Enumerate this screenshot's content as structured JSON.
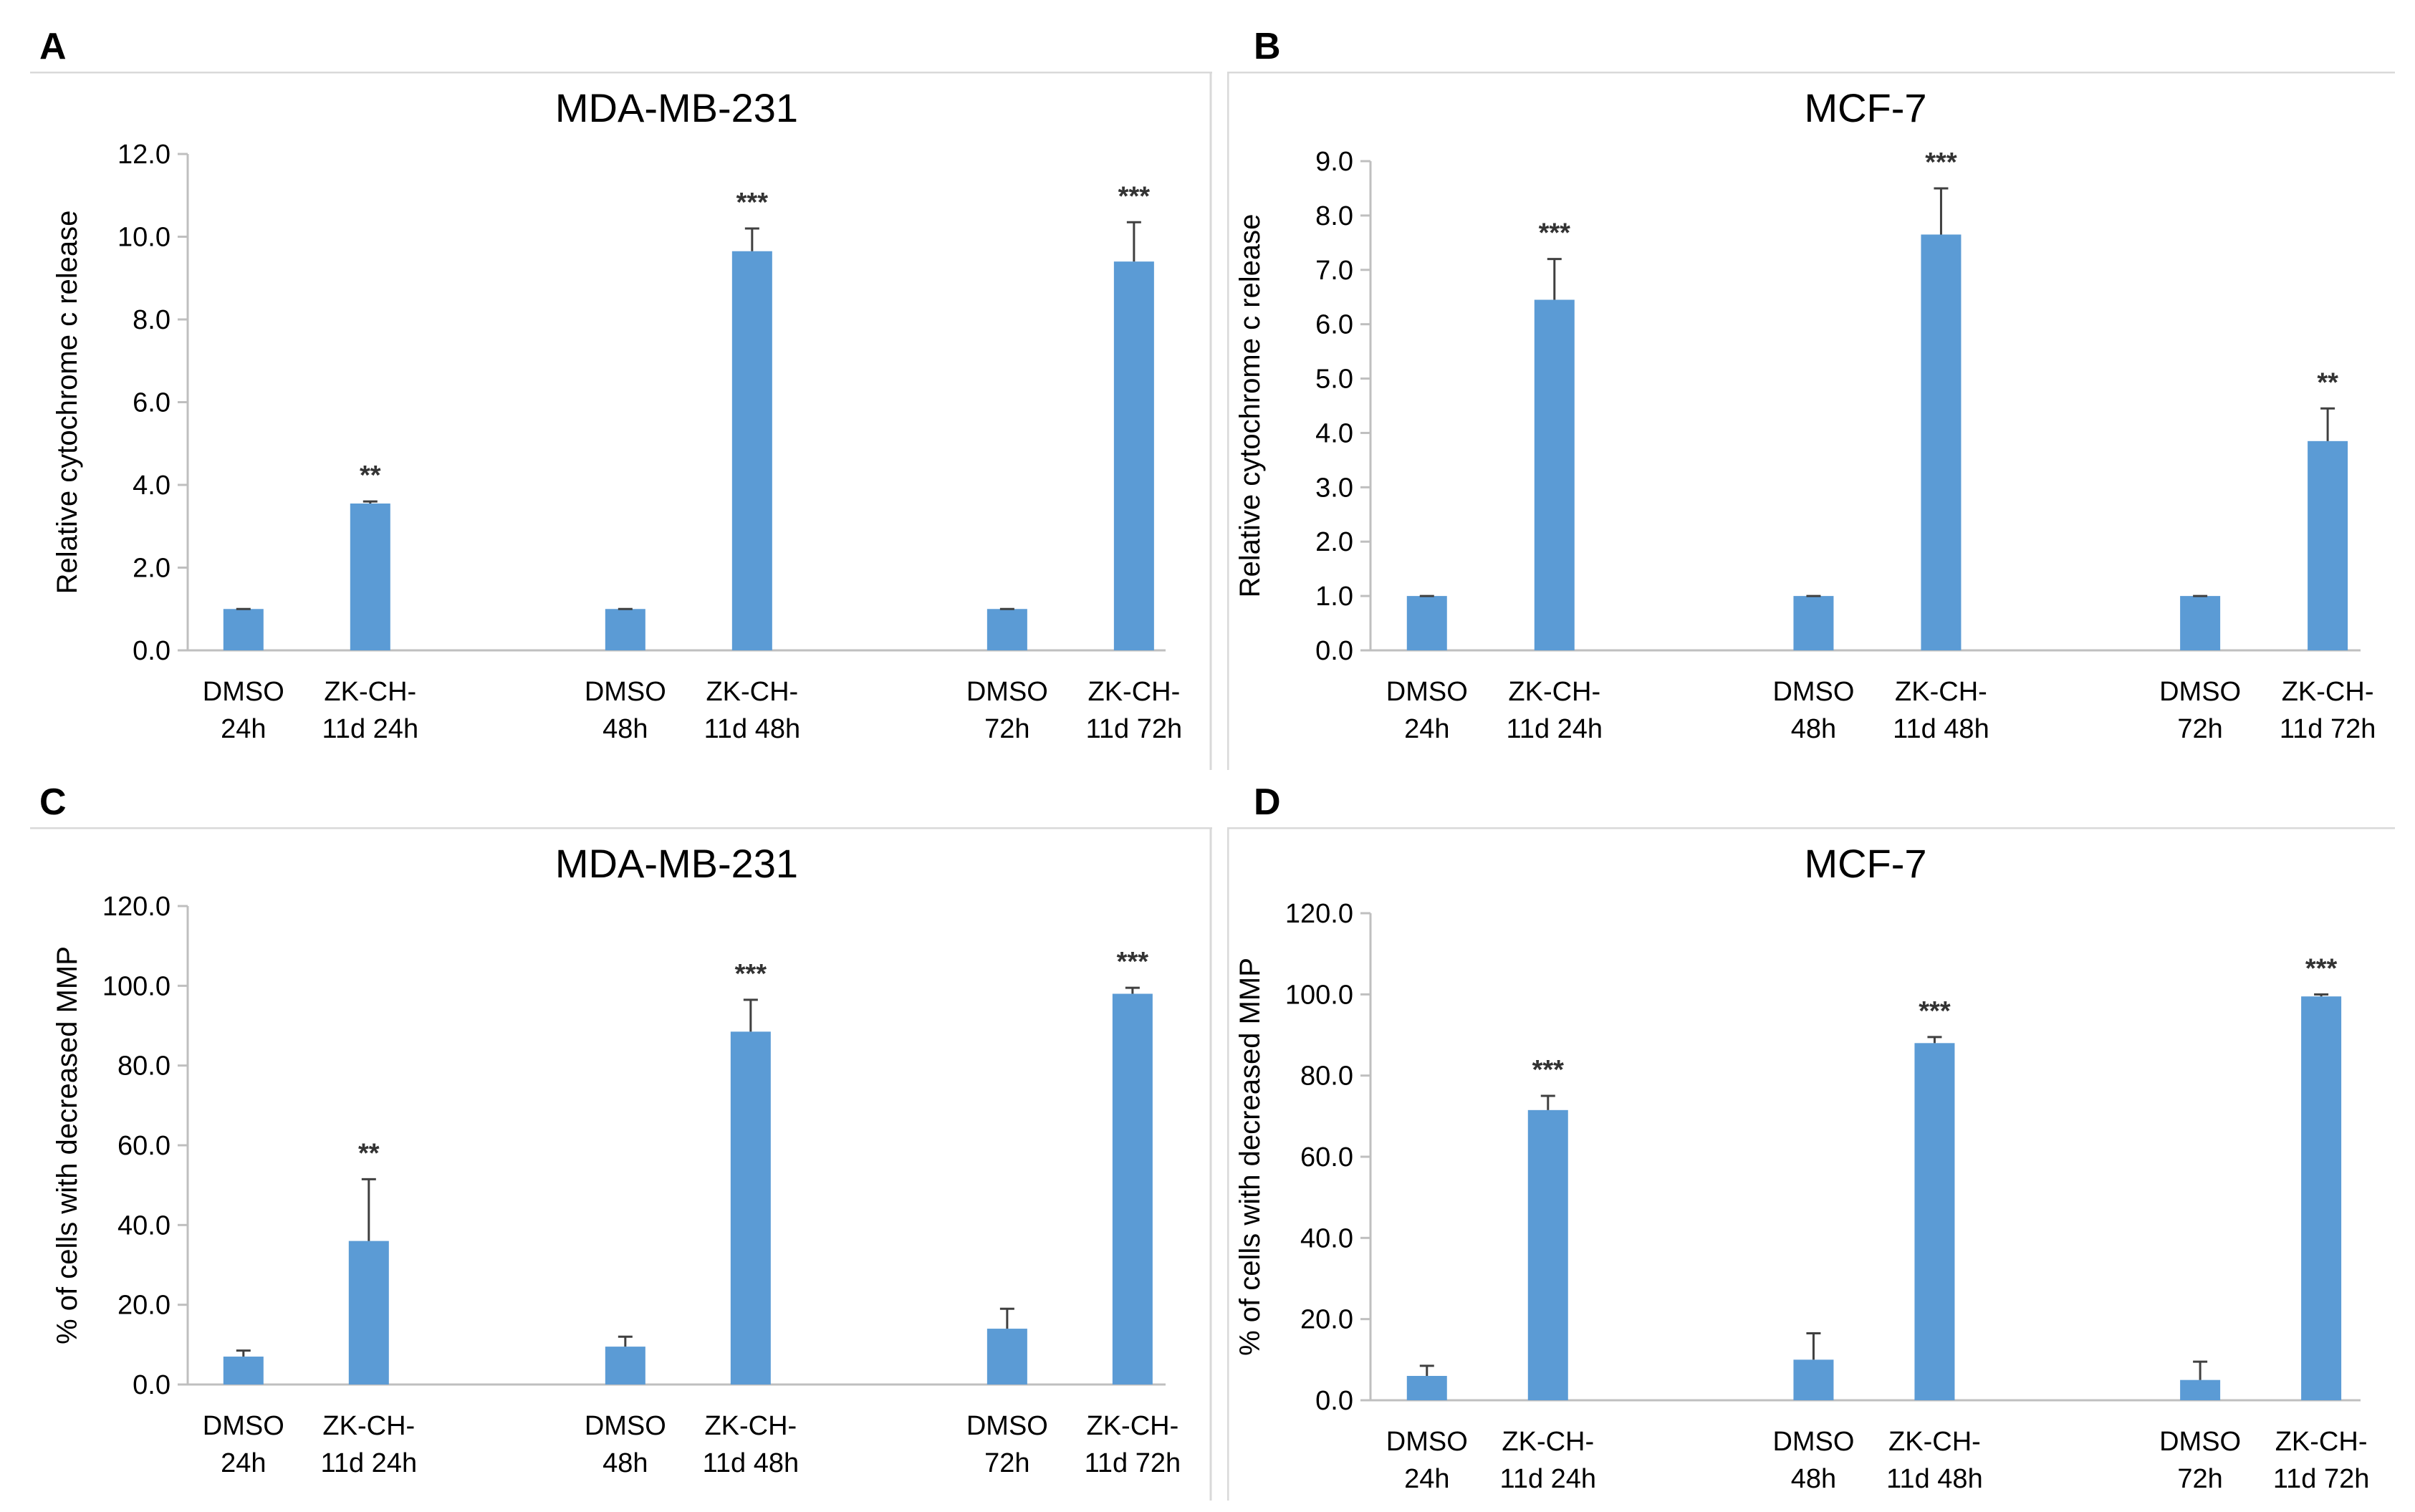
{
  "colors": {
    "bar": "#5b9bd5",
    "error": "#404040",
    "axis": "#bfbfbf",
    "frame": "#d9d9d9",
    "text": "#000000"
  },
  "panels": [
    {
      "letter": "A"
    },
    {
      "letter": "B"
    },
    {
      "letter": "C"
    },
    {
      "letter": "D"
    }
  ],
  "chart_data": [
    {
      "type": "bar",
      "title": "MDA-MB-231",
      "ylabel": "Relative cytochrome c release",
      "xlabel": "",
      "ylim": [
        0,
        12.0
      ],
      "ticks": [
        "0.0",
        "2.0",
        "4.0",
        "6.0",
        "8.0",
        "10.0",
        "12.0"
      ],
      "categories": [
        [
          "DMSO",
          "24h"
        ],
        [
          "ZK-CH-",
          "11d 24h"
        ],
        [
          "DMSO",
          "48h"
        ],
        [
          "ZK-CH-",
          "11d 48h"
        ],
        [
          "DMSO",
          "72h"
        ],
        [
          "ZK-CH-",
          "11d 72h"
        ]
      ],
      "values": [
        1.0,
        3.55,
        1.0,
        9.65,
        1.0,
        9.4
      ],
      "errors": [
        0.0,
        0.05,
        0.0,
        0.55,
        0.0,
        0.95
      ],
      "significance": [
        "",
        "**",
        "",
        "***",
        "",
        "***"
      ]
    },
    {
      "type": "bar",
      "title": "MCF-7",
      "ylabel": "Relative cytochrome c release",
      "xlabel": "",
      "ylim": [
        0,
        9.0
      ],
      "ticks": [
        "0.0",
        "1.0",
        "2.0",
        "3.0",
        "4.0",
        "5.0",
        "6.0",
        "7.0",
        "8.0",
        "9.0"
      ],
      "categories": [
        [
          "DMSO",
          "24h"
        ],
        [
          "ZK-CH-",
          "11d 24h"
        ],
        [
          "DMSO",
          "48h"
        ],
        [
          "ZK-CH-",
          "11d 48h"
        ],
        [
          "DMSO",
          "72h"
        ],
        [
          "ZK-CH-",
          "11d 72h"
        ]
      ],
      "values": [
        1.0,
        6.45,
        1.0,
        7.65,
        1.0,
        3.85
      ],
      "errors": [
        0.0,
        0.75,
        0.0,
        0.85,
        0.0,
        0.6
      ],
      "significance": [
        "",
        "***",
        "",
        "***",
        "",
        "**"
      ]
    },
    {
      "type": "bar",
      "title": "MDA-MB-231",
      "ylabel": "% of cells with decreased MMP",
      "xlabel": "",
      "ylim": [
        0,
        120.0
      ],
      "ticks": [
        "0.0",
        "20.0",
        "40.0",
        "60.0",
        "80.0",
        "100.0",
        "120.0"
      ],
      "categories": [
        [
          "DMSO",
          "24h"
        ],
        [
          "ZK-CH-",
          "11d 24h"
        ],
        [
          "DMSO",
          "48h"
        ],
        [
          "ZK-CH-",
          "11d 48h"
        ],
        [
          "DMSO",
          "72h"
        ],
        [
          "ZK-CH-",
          "11d 72h"
        ]
      ],
      "values": [
        7.0,
        36.0,
        9.5,
        88.5,
        14.0,
        98.0
      ],
      "errors": [
        1.5,
        15.5,
        2.5,
        8.0,
        5.0,
        1.5
      ],
      "significance": [
        "",
        "**",
        "",
        "***",
        "",
        "***"
      ]
    },
    {
      "type": "bar",
      "title": "MCF-7",
      "ylabel": "% of cells with decreased MMP",
      "xlabel": "",
      "ylim": [
        0,
        120.0
      ],
      "ticks": [
        "0.0",
        "20.0",
        "40.0",
        "60.0",
        "80.0",
        "100.0",
        "120.0"
      ],
      "categories": [
        [
          "DMSO",
          "24h"
        ],
        [
          "ZK-CH-",
          "11d 24h"
        ],
        [
          "DMSO",
          "48h"
        ],
        [
          "ZK-CH-",
          "11d 48h"
        ],
        [
          "DMSO",
          "72h"
        ],
        [
          "ZK-CH-",
          "11d 72h"
        ]
      ],
      "values": [
        6.0,
        71.5,
        10.0,
        88.0,
        5.0,
        99.5
      ],
      "errors": [
        2.5,
        3.5,
        6.5,
        1.5,
        4.5,
        0.5
      ],
      "significance": [
        "",
        "***",
        "",
        "***",
        "",
        "***"
      ]
    }
  ]
}
